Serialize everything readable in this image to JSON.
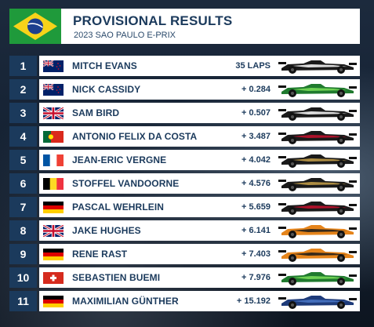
{
  "header": {
    "title": "PROVISIONAL RESULTS",
    "subtitle": "2023 SAO PAULO E-PRIX",
    "flag_icon": "brazil-flag-icon"
  },
  "colors": {
    "navy": "#1b3a5c",
    "white": "#ffffff"
  },
  "results": [
    {
      "position": "1",
      "driver": "MITCH EVANS",
      "gap": "35 LAPS",
      "flag": "new-zealand-flag-icon",
      "livery": "jaguar",
      "car_color": "#1a1a1a",
      "accent": "#ffffff"
    },
    {
      "position": "2",
      "driver": "NICK CASSIDY",
      "gap": "+ 0.284",
      "flag": "new-zealand-flag-icon",
      "livery": "envision",
      "car_color": "#1f7a2e",
      "accent": "#7ee05a"
    },
    {
      "position": "3",
      "driver": "SAM BIRD",
      "gap": "+ 0.507",
      "flag": "uk-flag-icon",
      "livery": "jaguar",
      "car_color": "#1a1a1a",
      "accent": "#ffffff"
    },
    {
      "position": "4",
      "driver": "ANTONIO FELIX DA COSTA",
      "gap": "+ 3.487",
      "flag": "portugal-flag-icon",
      "livery": "porsche",
      "car_color": "#1a1a1a",
      "accent": "#c8102e"
    },
    {
      "position": "5",
      "driver": "JEAN-ERIC VERGNE",
      "gap": "+ 4.042",
      "flag": "france-flag-icon",
      "livery": "ds",
      "car_color": "#1a1a1a",
      "accent": "#c9a24a"
    },
    {
      "position": "6",
      "driver": "STOFFEL VANDOORNE",
      "gap": "+ 4.576",
      "flag": "belgium-flag-icon",
      "livery": "ds",
      "car_color": "#1a1a1a",
      "accent": "#c9a24a"
    },
    {
      "position": "7",
      "driver": "PASCAL WEHRLEIN",
      "gap": "+ 5.659",
      "flag": "germany-flag-icon",
      "livery": "porsche",
      "car_color": "#1a1a1a",
      "accent": "#c8102e"
    },
    {
      "position": "8",
      "driver": "JAKE HUGHES",
      "gap": "+ 6.141",
      "flag": "uk-flag-icon",
      "livery": "mclaren",
      "car_color": "#e5841b",
      "accent": "#1a1a1a"
    },
    {
      "position": "9",
      "driver": "RENE RAST",
      "gap": "+ 7.403",
      "flag": "germany-flag-icon",
      "livery": "mclaren",
      "car_color": "#e5841b",
      "accent": "#1a1a1a"
    },
    {
      "position": "10",
      "driver": "SEBASTIEN BUEMI",
      "gap": "+ 7.976",
      "flag": "switzerland-flag-icon",
      "livery": "envision",
      "car_color": "#1f7a2e",
      "accent": "#7ee05a"
    },
    {
      "position": "11",
      "driver": "MAXIMILIAN GÜNTHER",
      "gap": "+ 15.192",
      "flag": "germany-flag-icon",
      "livery": "maserati",
      "car_color": "#1e3b7a",
      "accent": "#4a78c8"
    }
  ]
}
